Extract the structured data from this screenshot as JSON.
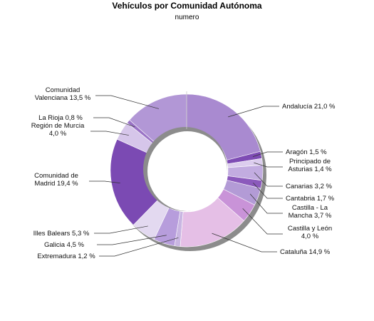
{
  "chart_data": {
    "type": "pie",
    "donut": true,
    "title": "Vehículos por Comunidad Autónoma",
    "subtitle": "numero",
    "unit": "%",
    "slices": [
      {
        "label": [
          "Andalucía 21,0 %"
        ],
        "value": 21.0,
        "color": "#a98ad0"
      },
      {
        "label": [
          "Aragón 1,5 %"
        ],
        "value": 1.5,
        "color": "#7e4cb4"
      },
      {
        "label": [
          "Principado de",
          "Asturias 1,4 %"
        ],
        "value": 1.4,
        "color": "#dccdee"
      },
      {
        "label": [
          "Canarias 3,2 %"
        ],
        "value": 3.2,
        "color": "#c2ace0"
      },
      {
        "label": [
          "Cantabria 1,7 %"
        ],
        "value": 1.7,
        "color": "#8b5abc"
      },
      {
        "label": [
          "Castilla - La",
          "Mancha 3,7 %"
        ],
        "value": 3.7,
        "color": "#b39bd6"
      },
      {
        "label": [
          "Castilla y León",
          "4,0 %"
        ],
        "value": 4.0,
        "color": "#c993d8"
      },
      {
        "label": [
          "Cataluña 14,9 %"
        ],
        "value": 14.9,
        "color": "#e5bfe6"
      },
      {
        "label": [
          "Extremadura 1,2 %"
        ],
        "value": 1.2,
        "color": "#c9b6e2"
      },
      {
        "label": [
          "Galicia 4,5 %"
        ],
        "value": 4.5,
        "color": "#b79ddc"
      },
      {
        "label": [
          "Illes Balears 5,3 %"
        ],
        "value": 5.3,
        "color": "#e3d9f0"
      },
      {
        "label": [
          "Comunidad de",
          "Madrid 19,4 %"
        ],
        "value": 19.4,
        "color": "#7b4ab3"
      },
      {
        "label": [
          "Región de Murcia",
          "4,0 %"
        ],
        "value": 4.0,
        "color": "#d6c6ea"
      },
      {
        "label": [
          "La Rioja 0,8 %"
        ],
        "value": 0.8,
        "color": "#9a73c6"
      },
      {
        "label": [
          "Comunidad",
          "Valenciana 13,5 %"
        ],
        "value": 13.5,
        "color": "#b297d6"
      }
    ]
  }
}
